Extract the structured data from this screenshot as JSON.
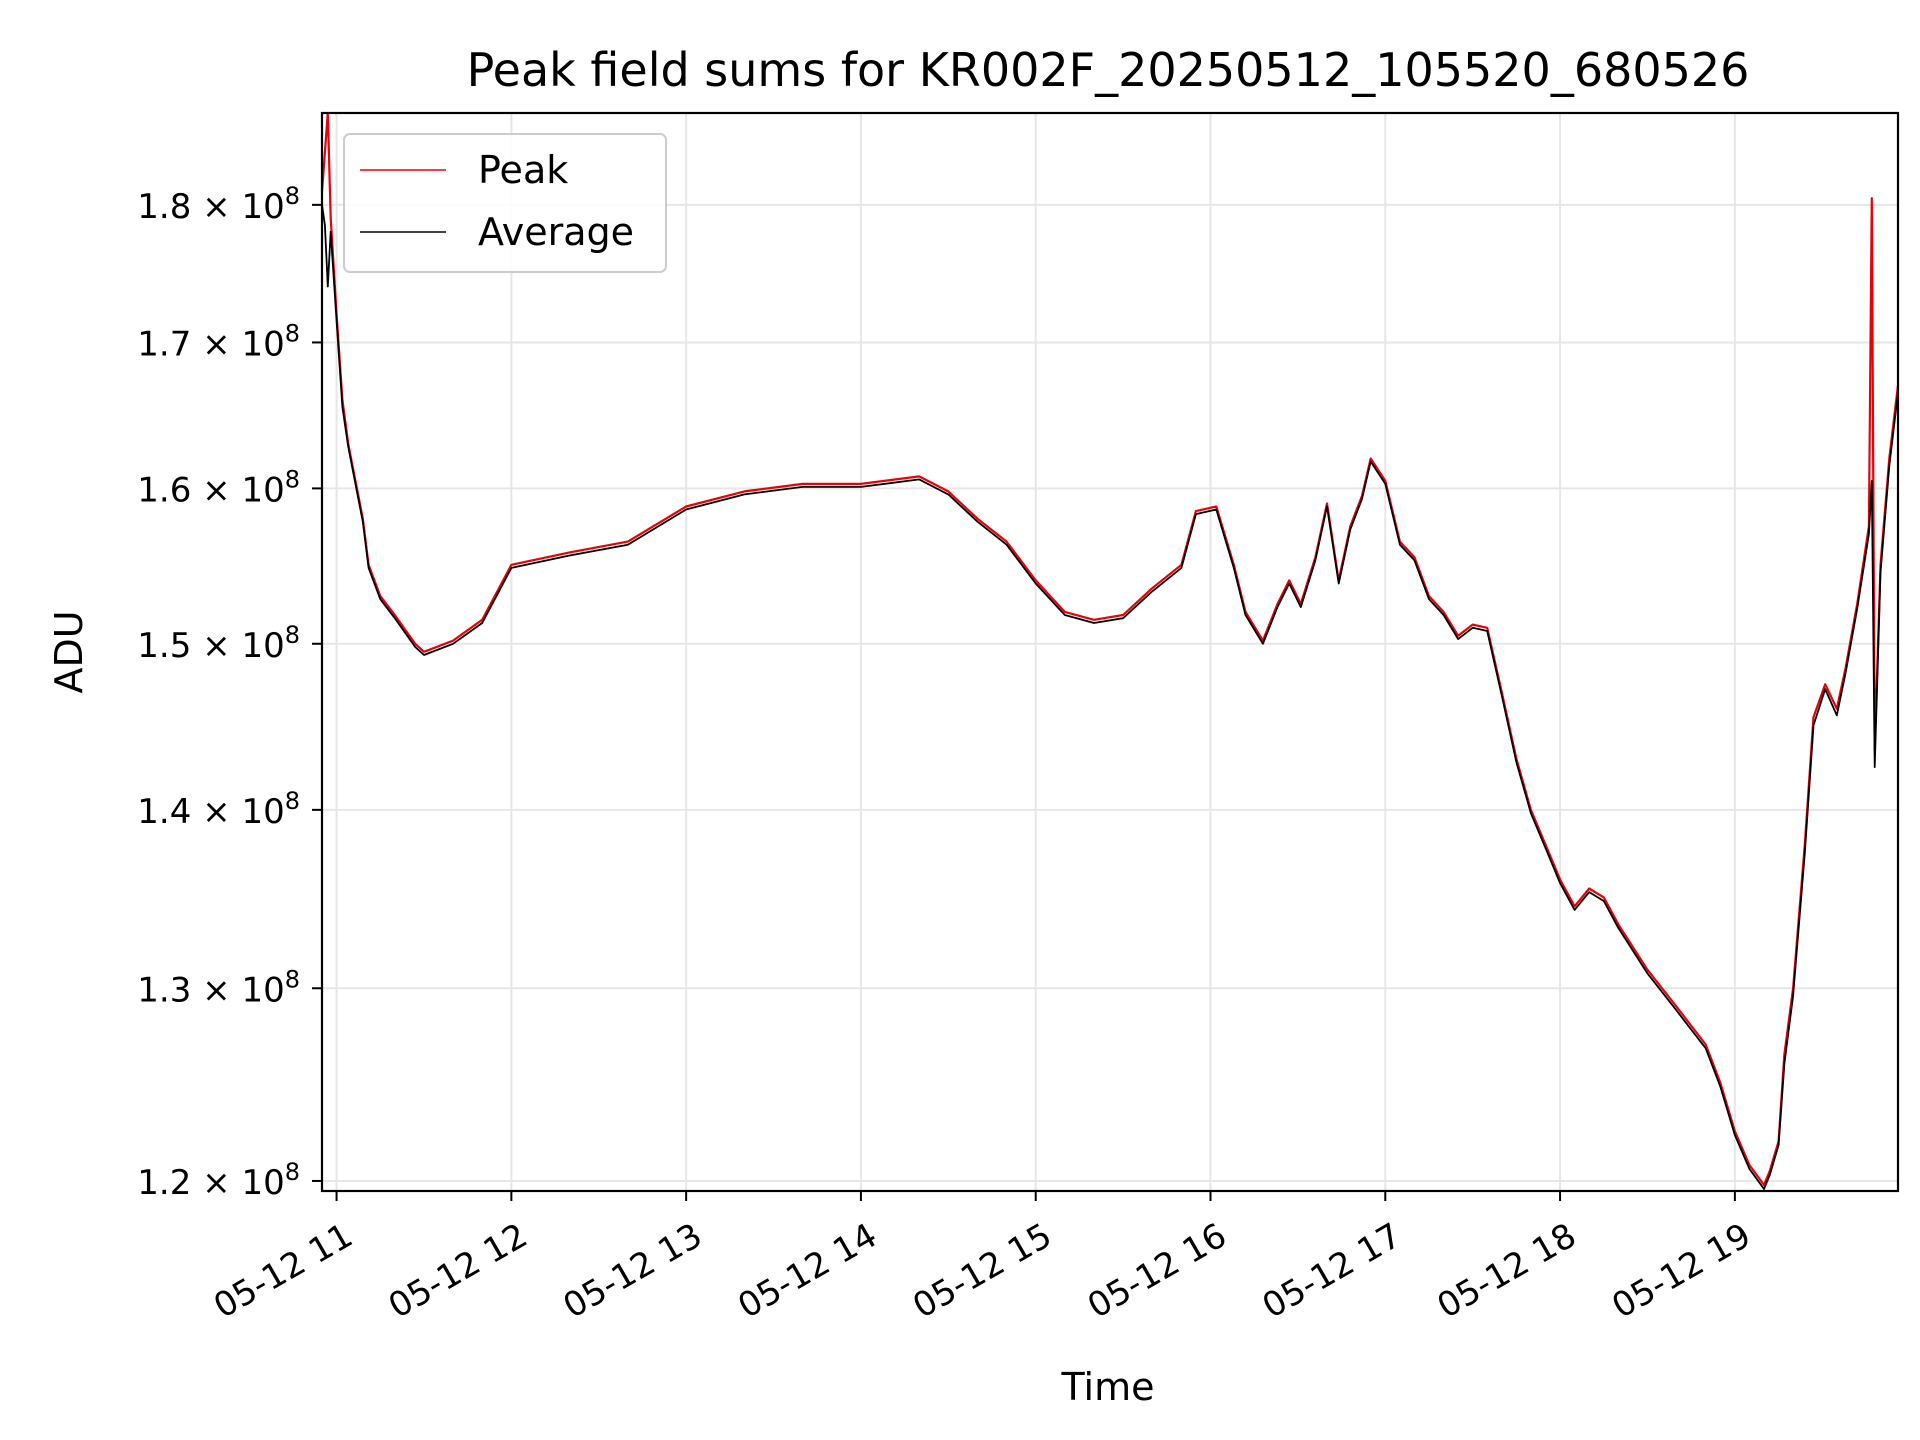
{
  "chart_data": {
    "type": "line",
    "title": "Peak field sums for KR002F_20250512_105520_680526",
    "xlabel": "Time",
    "ylabel": "ADU",
    "x_axis": {
      "kind": "datetime",
      "range": [
        "2025-05-12T10:55",
        "2025-05-12T19:56"
      ],
      "ticks": [
        {
          "value": "2025-05-12T11:00",
          "label": "05-12 11"
        },
        {
          "value": "2025-05-12T12:00",
          "label": "05-12 12"
        },
        {
          "value": "2025-05-12T13:00",
          "label": "05-12 13"
        },
        {
          "value": "2025-05-12T14:00",
          "label": "05-12 14"
        },
        {
          "value": "2025-05-12T15:00",
          "label": "05-12 15"
        },
        {
          "value": "2025-05-12T16:00",
          "label": "05-12 16"
        },
        {
          "value": "2025-05-12T17:00",
          "label": "05-12 17"
        },
        {
          "value": "2025-05-12T18:00",
          "label": "05-12 18"
        },
        {
          "value": "2025-05-12T19:00",
          "label": "05-12 19"
        }
      ]
    },
    "y_axis": {
      "scale": "log",
      "range": [
        119500000,
        187000000
      ],
      "ticks": [
        {
          "value": 120000000,
          "mantissa": "1.2"
        },
        {
          "value": 130000000,
          "mantissa": "1.3"
        },
        {
          "value": 140000000,
          "mantissa": "1.4"
        },
        {
          "value": 150000000,
          "mantissa": "1.5"
        },
        {
          "value": 160000000,
          "mantissa": "1.6"
        },
        {
          "value": 170000000,
          "mantissa": "1.7"
        },
        {
          "value": 180000000,
          "mantissa": "1.8"
        }
      ],
      "tick_times": "×",
      "tick_base": "10",
      "tick_exponent": "8"
    },
    "grid": true,
    "legend": {
      "position": "top-left"
    },
    "series": [
      {
        "name": "Peak",
        "color": "#e8000b",
        "points": [
          [
            "2025-05-12T10:55",
            181000000
          ],
          [
            "2025-05-12T10:57",
            187000000
          ],
          [
            "2025-05-12T10:58",
            179000000
          ],
          [
            "2025-05-12T11:00",
            172000000
          ],
          [
            "2025-05-12T11:02",
            166000000
          ],
          [
            "2025-05-12T11:04",
            163000000
          ],
          [
            "2025-05-12T11:06",
            161000000
          ],
          [
            "2025-05-12T11:09",
            158000000
          ],
          [
            "2025-05-12T11:11",
            155000000
          ],
          [
            "2025-05-12T11:15",
            153000000
          ],
          [
            "2025-05-12T11:20",
            151800000
          ],
          [
            "2025-05-12T11:27",
            150000000
          ],
          [
            "2025-05-12T11:30",
            149500000
          ],
          [
            "2025-05-12T11:40",
            150200000
          ],
          [
            "2025-05-12T11:50",
            151500000
          ],
          [
            "2025-05-12T12:00",
            155000000
          ],
          [
            "2025-05-12T12:20",
            155800000
          ],
          [
            "2025-05-12T12:40",
            156500000
          ],
          [
            "2025-05-12T13:00",
            158800000
          ],
          [
            "2025-05-12T13:20",
            159800000
          ],
          [
            "2025-05-12T13:40",
            160300000
          ],
          [
            "2025-05-12T14:00",
            160300000
          ],
          [
            "2025-05-12T14:20",
            160800000
          ],
          [
            "2025-05-12T14:30",
            159800000
          ],
          [
            "2025-05-12T14:40",
            158000000
          ],
          [
            "2025-05-12T14:50",
            156500000
          ],
          [
            "2025-05-12T15:00",
            154000000
          ],
          [
            "2025-05-12T15:10",
            152000000
          ],
          [
            "2025-05-12T15:20",
            151500000
          ],
          [
            "2025-05-12T15:30",
            151800000
          ],
          [
            "2025-05-12T15:40",
            153500000
          ],
          [
            "2025-05-12T15:50",
            155000000
          ],
          [
            "2025-05-12T15:55",
            158500000
          ],
          [
            "2025-05-12T16:02",
            158800000
          ],
          [
            "2025-05-12T16:08",
            155000000
          ],
          [
            "2025-05-12T16:12",
            152000000
          ],
          [
            "2025-05-12T16:18",
            150200000
          ],
          [
            "2025-05-12T16:23",
            152500000
          ],
          [
            "2025-05-12T16:27",
            154000000
          ],
          [
            "2025-05-12T16:31",
            152500000
          ],
          [
            "2025-05-12T16:36",
            155500000
          ],
          [
            "2025-05-12T16:40",
            159000000
          ],
          [
            "2025-05-12T16:44",
            154000000
          ],
          [
            "2025-05-12T16:48",
            157500000
          ],
          [
            "2025-05-12T16:52",
            159500000
          ],
          [
            "2025-05-12T16:55",
            162000000
          ],
          [
            "2025-05-12T17:00",
            160500000
          ],
          [
            "2025-05-12T17:05",
            156500000
          ],
          [
            "2025-05-12T17:10",
            155500000
          ],
          [
            "2025-05-12T17:15",
            153000000
          ],
          [
            "2025-05-12T17:20",
            152000000
          ],
          [
            "2025-05-12T17:25",
            150500000
          ],
          [
            "2025-05-12T17:30",
            151200000
          ],
          [
            "2025-05-12T17:35",
            151000000
          ],
          [
            "2025-05-12T17:40",
            147000000
          ],
          [
            "2025-05-12T17:45",
            143000000
          ],
          [
            "2025-05-12T17:50",
            140000000
          ],
          [
            "2025-05-12T17:55",
            138000000
          ],
          [
            "2025-05-12T18:00",
            136000000
          ],
          [
            "2025-05-12T18:05",
            134500000
          ],
          [
            "2025-05-12T18:10",
            135500000
          ],
          [
            "2025-05-12T18:15",
            135000000
          ],
          [
            "2025-05-12T18:20",
            133500000
          ],
          [
            "2025-05-12T18:30",
            131000000
          ],
          [
            "2025-05-12T18:40",
            129000000
          ],
          [
            "2025-05-12T18:50",
            127000000
          ],
          [
            "2025-05-12T18:55",
            125000000
          ],
          [
            "2025-05-12T19:00",
            122500000
          ],
          [
            "2025-05-12T19:05",
            120800000
          ],
          [
            "2025-05-12T19:10",
            119800000
          ],
          [
            "2025-05-12T19:12",
            120500000
          ],
          [
            "2025-05-12T19:15",
            122000000
          ],
          [
            "2025-05-12T19:17",
            126500000
          ],
          [
            "2025-05-12T19:20",
            130000000
          ],
          [
            "2025-05-12T19:24",
            138000000
          ],
          [
            "2025-05-12T19:27",
            145500000
          ],
          [
            "2025-05-12T19:31",
            147500000
          ],
          [
            "2025-05-12T19:35",
            146000000
          ],
          [
            "2025-05-12T19:38",
            148500000
          ],
          [
            "2025-05-12T19:42",
            152500000
          ],
          [
            "2025-05-12T19:46",
            157500000
          ],
          [
            "2025-05-12T19:47",
            180500000
          ],
          [
            "2025-05-12T19:48",
            143500000
          ],
          [
            "2025-05-12T19:50",
            155000000
          ],
          [
            "2025-05-12T19:53",
            162000000
          ],
          [
            "2025-05-12T19:56",
            167000000
          ]
        ]
      },
      {
        "name": "Average",
        "color": "#000000",
        "points": [
          [
            "2025-05-12T10:55",
            180000000
          ],
          [
            "2025-05-12T10:56",
            178500000
          ],
          [
            "2025-05-12T10:57",
            174000000
          ],
          [
            "2025-05-12T10:58",
            178000000
          ],
          [
            "2025-05-12T11:00",
            171500000
          ],
          [
            "2025-05-12T11:02",
            165500000
          ],
          [
            "2025-05-12T11:04",
            162800000
          ],
          [
            "2025-05-12T11:06",
            160800000
          ],
          [
            "2025-05-12T11:09",
            157800000
          ],
          [
            "2025-05-12T11:11",
            154800000
          ],
          [
            "2025-05-12T11:15",
            152800000
          ],
          [
            "2025-05-12T11:20",
            151600000
          ],
          [
            "2025-05-12T11:27",
            149800000
          ],
          [
            "2025-05-12T11:30",
            149300000
          ],
          [
            "2025-05-12T11:40",
            150000000
          ],
          [
            "2025-05-12T11:50",
            151300000
          ],
          [
            "2025-05-12T12:00",
            154800000
          ],
          [
            "2025-05-12T12:20",
            155600000
          ],
          [
            "2025-05-12T12:40",
            156300000
          ],
          [
            "2025-05-12T13:00",
            158600000
          ],
          [
            "2025-05-12T13:20",
            159600000
          ],
          [
            "2025-05-12T13:40",
            160100000
          ],
          [
            "2025-05-12T14:00",
            160100000
          ],
          [
            "2025-05-12T14:20",
            160600000
          ],
          [
            "2025-05-12T14:30",
            159600000
          ],
          [
            "2025-05-12T14:40",
            157800000
          ],
          [
            "2025-05-12T14:50",
            156300000
          ],
          [
            "2025-05-12T15:00",
            153800000
          ],
          [
            "2025-05-12T15:10",
            151800000
          ],
          [
            "2025-05-12T15:20",
            151300000
          ],
          [
            "2025-05-12T15:30",
            151600000
          ],
          [
            "2025-05-12T15:40",
            153300000
          ],
          [
            "2025-05-12T15:50",
            154800000
          ],
          [
            "2025-05-12T15:55",
            158300000
          ],
          [
            "2025-05-12T16:02",
            158600000
          ],
          [
            "2025-05-12T16:08",
            154800000
          ],
          [
            "2025-05-12T16:12",
            151800000
          ],
          [
            "2025-05-12T16:18",
            150000000
          ],
          [
            "2025-05-12T16:23",
            152300000
          ],
          [
            "2025-05-12T16:27",
            153800000
          ],
          [
            "2025-05-12T16:31",
            152300000
          ],
          [
            "2025-05-12T16:36",
            155300000
          ],
          [
            "2025-05-12T16:40",
            158800000
          ],
          [
            "2025-05-12T16:44",
            153800000
          ],
          [
            "2025-05-12T16:48",
            157300000
          ],
          [
            "2025-05-12T16:52",
            159300000
          ],
          [
            "2025-05-12T16:55",
            161800000
          ],
          [
            "2025-05-12T17:00",
            160300000
          ],
          [
            "2025-05-12T17:05",
            156300000
          ],
          [
            "2025-05-12T17:10",
            155300000
          ],
          [
            "2025-05-12T17:15",
            152800000
          ],
          [
            "2025-05-12T17:20",
            151800000
          ],
          [
            "2025-05-12T17:25",
            150300000
          ],
          [
            "2025-05-12T17:30",
            151000000
          ],
          [
            "2025-05-12T17:35",
            150800000
          ],
          [
            "2025-05-12T17:40",
            146800000
          ],
          [
            "2025-05-12T17:45",
            142800000
          ],
          [
            "2025-05-12T17:50",
            139800000
          ],
          [
            "2025-05-12T17:55",
            137800000
          ],
          [
            "2025-05-12T18:00",
            135800000
          ],
          [
            "2025-05-12T18:05",
            134300000
          ],
          [
            "2025-05-12T18:10",
            135300000
          ],
          [
            "2025-05-12T18:15",
            134800000
          ],
          [
            "2025-05-12T18:20",
            133300000
          ],
          [
            "2025-05-12T18:30",
            130800000
          ],
          [
            "2025-05-12T18:40",
            128800000
          ],
          [
            "2025-05-12T18:50",
            126800000
          ],
          [
            "2025-05-12T18:55",
            124800000
          ],
          [
            "2025-05-12T19:00",
            122300000
          ],
          [
            "2025-05-12T19:05",
            120600000
          ],
          [
            "2025-05-12T19:10",
            119600000
          ],
          [
            "2025-05-12T19:12",
            120300000
          ],
          [
            "2025-05-12T19:15",
            121800000
          ],
          [
            "2025-05-12T19:17",
            126000000
          ],
          [
            "2025-05-12T19:20",
            129600000
          ],
          [
            "2025-05-12T19:24",
            137500000
          ],
          [
            "2025-05-12T19:27",
            145000000
          ],
          [
            "2025-05-12T19:31",
            147200000
          ],
          [
            "2025-05-12T19:35",
            145600000
          ],
          [
            "2025-05-12T19:38",
            148200000
          ],
          [
            "2025-05-12T19:42",
            152200000
          ],
          [
            "2025-05-12T19:46",
            157000000
          ],
          [
            "2025-05-12T19:47",
            160500000
          ],
          [
            "2025-05-12T19:48",
            142500000
          ],
          [
            "2025-05-12T19:50",
            154500000
          ],
          [
            "2025-05-12T19:53",
            161500000
          ],
          [
            "2025-05-12T19:56",
            166500000
          ]
        ]
      }
    ]
  }
}
